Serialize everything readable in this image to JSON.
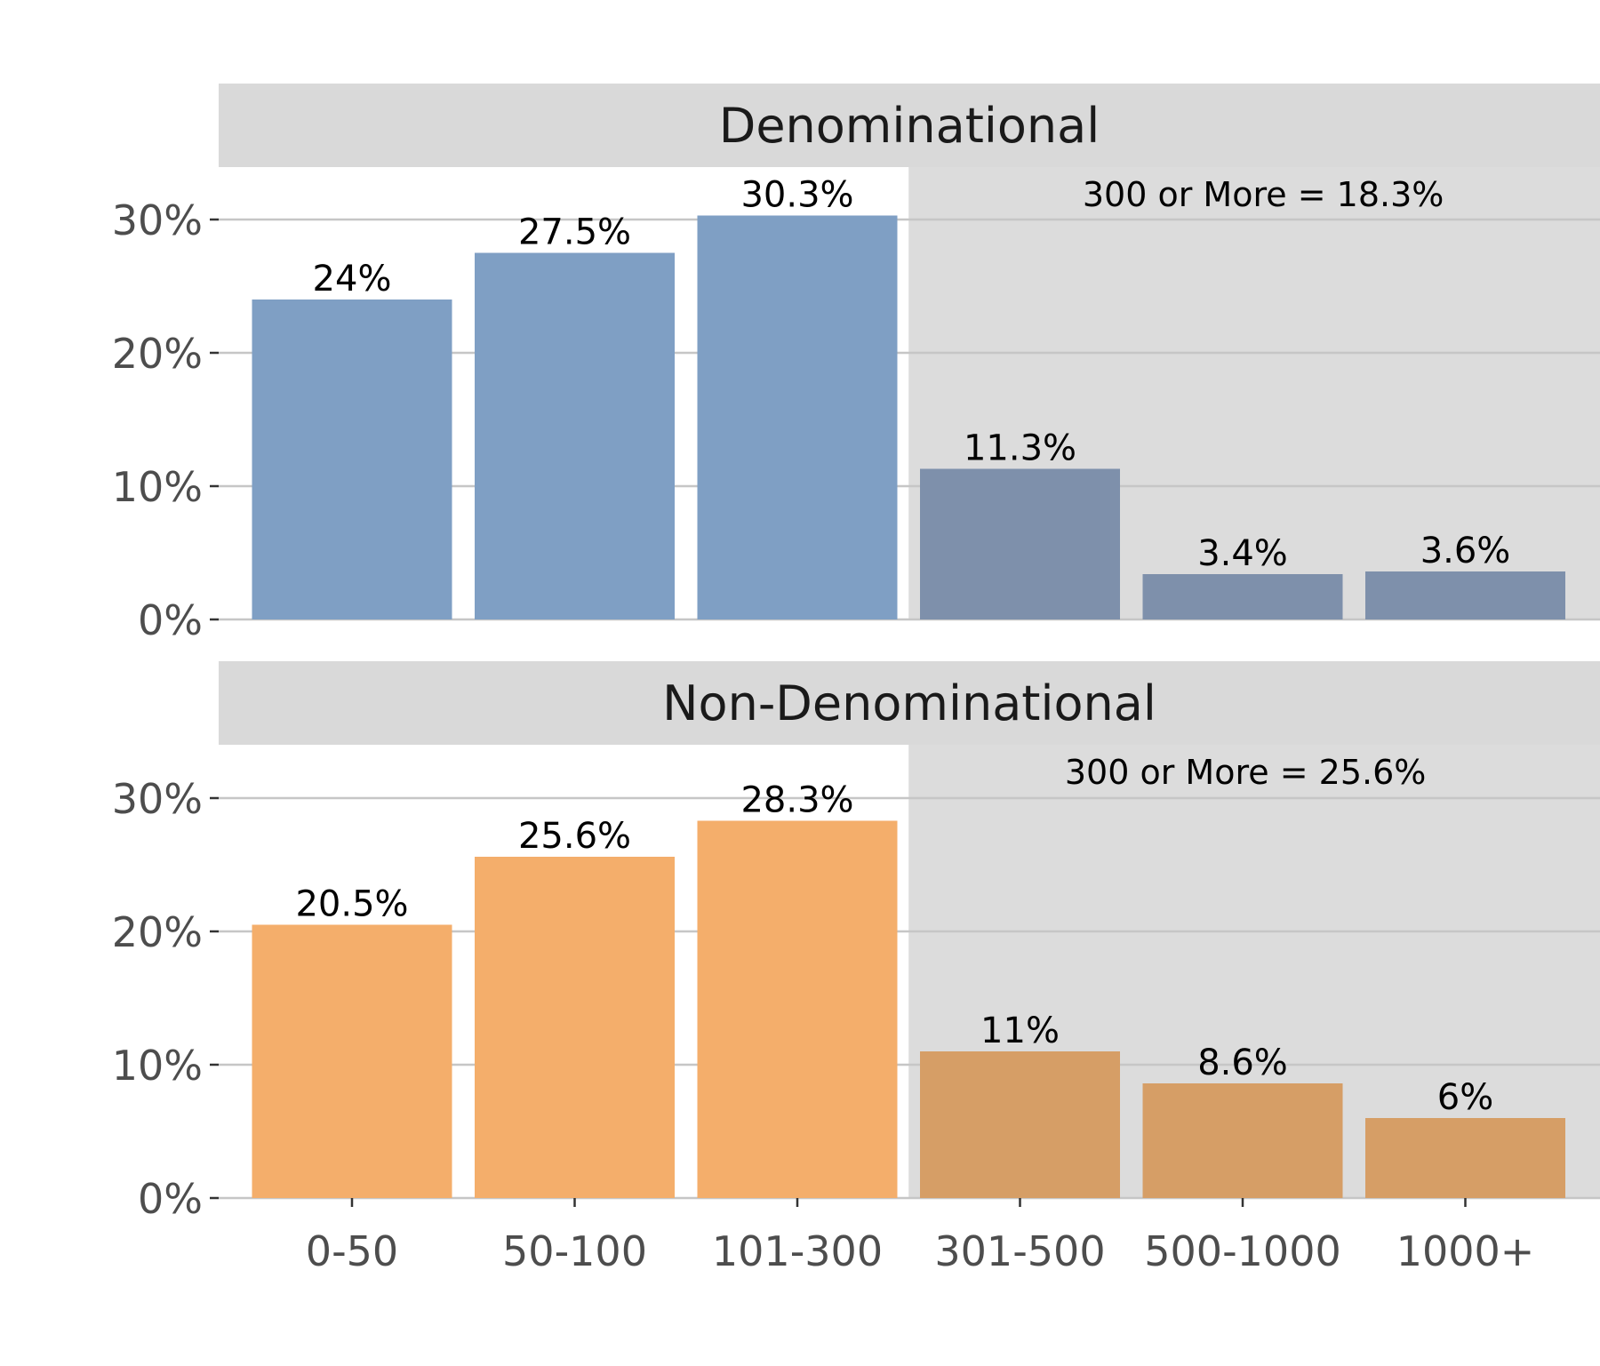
{
  "chart_data": {
    "type": "bar",
    "categories": [
      "0-50",
      "50-100",
      "101-300",
      "301-500",
      "500-1000",
      "1000+"
    ],
    "ylim": [
      0,
      33
    ],
    "yticks": [
      0,
      10,
      20,
      30
    ],
    "ytick_labels": [
      "0%",
      "10%",
      "20%",
      "30%"
    ],
    "grid": true,
    "panels": [
      {
        "title": "Denominational",
        "values": [
          24,
          27.5,
          30.3,
          11.3,
          3.4,
          3.6
        ],
        "value_labels": [
          "24%",
          "27.5%",
          "30.3%",
          "11.3%",
          "3.4%",
          "3.6%"
        ],
        "annotation": "300 or More = 18.3%",
        "color": "#7f9fc4",
        "highlight_color": "#7e90ab"
      },
      {
        "title": "Non-Denominational",
        "values": [
          20.5,
          25.6,
          28.3,
          11,
          8.6,
          6
        ],
        "value_labels": [
          "20.5%",
          "25.6%",
          "28.3%",
          "11%",
          "8.6%",
          "6%"
        ],
        "annotation": "300 or More = 25.6%",
        "color": "#f4ae6b",
        "highlight_color": "#d69e66"
      }
    ],
    "shaded_from_category": 3,
    "colors": {
      "strip": "#d9d9d9",
      "shade": "#dcdcdc",
      "grid": "#c6c6c6",
      "axis": "#333333"
    }
  }
}
